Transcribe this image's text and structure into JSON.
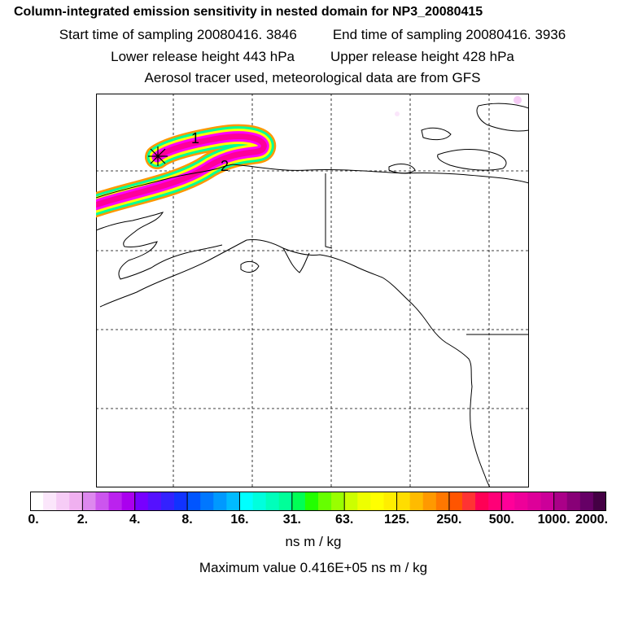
{
  "header": {
    "title": "Column-integrated emission sensitivity in nested domain for NP3_20080415",
    "start_time": "Start time of sampling 20080416.  3846",
    "end_time": "End time of sampling 20080416.  3936",
    "lower_height": "Lower release height  443 hPa",
    "upper_height": "Upper release height  428 hPa",
    "tracer_info": "Aerosol tracer used, meteorological data are from GFS"
  },
  "map": {
    "release_markers": [
      "1",
      "2"
    ],
    "plume_description_colors": [
      "#ff00ff",
      "#ff0099",
      "#ffff00",
      "#00ff99",
      "#00ffff",
      "#0099ff",
      "#ff9900"
    ]
  },
  "colorbar": {
    "tick_labels": [
      "0.",
      "2.",
      "4.",
      "8.",
      "16.",
      "31.",
      "63.",
      "125.",
      "250.",
      "500.",
      "1000.",
      "2000."
    ],
    "colors": [
      "#ffffff",
      "#fbe6fb",
      "#f6ccf6",
      "#f0b0f0",
      "#dd88ee",
      "#cc55ee",
      "#bb22ee",
      "#aa00ee",
      "#7700ff",
      "#5511ff",
      "#3322ff",
      "#1133ff",
      "#0055ff",
      "#0077ff",
      "#0099ff",
      "#00bbff",
      "#00ffff",
      "#00ffdd",
      "#00ffbb",
      "#00ff99",
      "#00ff55",
      "#22ff00",
      "#66ff00",
      "#99ff00",
      "#ccff00",
      "#eeff00",
      "#ffff00",
      "#ffee00",
      "#ffdd00",
      "#ffbb00",
      "#ff9900",
      "#ff7700",
      "#ff5500",
      "#ff3333",
      "#ff0055",
      "#ff0077",
      "#ff0099",
      "#ee0099",
      "#dd0099",
      "#cc0099",
      "#aa0088",
      "#880077",
      "#660066",
      "#440044"
    ],
    "units": "ns m / kg",
    "max_value": "Maximum value  0.416E+05 ns m / kg"
  }
}
